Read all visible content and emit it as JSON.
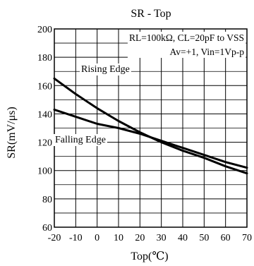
{
  "chart_data": {
    "type": "line",
    "title": "SR - Top",
    "xlabel": "Top(℃)",
    "ylabel": "SR(mV/μs)",
    "xlim": [
      -20,
      70
    ],
    "ylim": [
      60,
      200
    ],
    "x_ticks": [
      -20,
      -10,
      0,
      10,
      20,
      30,
      40,
      50,
      60,
      70
    ],
    "y_ticks": [
      60,
      80,
      100,
      120,
      140,
      160,
      180,
      200
    ],
    "x_tick_labels": [
      "-20",
      "-10",
      "0",
      "10",
      "20",
      "30",
      "40",
      "50",
      "60",
      "70"
    ],
    "y_tick_labels": [
      "60",
      "80",
      "100",
      "120",
      "140",
      "160",
      "180",
      "200"
    ],
    "grid": true,
    "annotations": [
      "RL=100kΩ,  CL=20pF to VSS",
      "Av=+1,  Vin=1Vp-p"
    ],
    "series": [
      {
        "name": "Rising Edge",
        "x": [
          -20,
          -10,
          0,
          10,
          20,
          30,
          40,
          50,
          60,
          70
        ],
        "y": [
          165,
          154,
          144,
          135,
          127,
          120,
          114,
          109,
          103,
          98
        ]
      },
      {
        "name": "Falling Edge",
        "x": [
          -20,
          -10,
          0,
          10,
          20,
          30,
          40,
          50,
          60,
          70
        ],
        "y": [
          143,
          138,
          133,
          130,
          126,
          121,
          116,
          111,
          106,
          102
        ]
      }
    ]
  }
}
